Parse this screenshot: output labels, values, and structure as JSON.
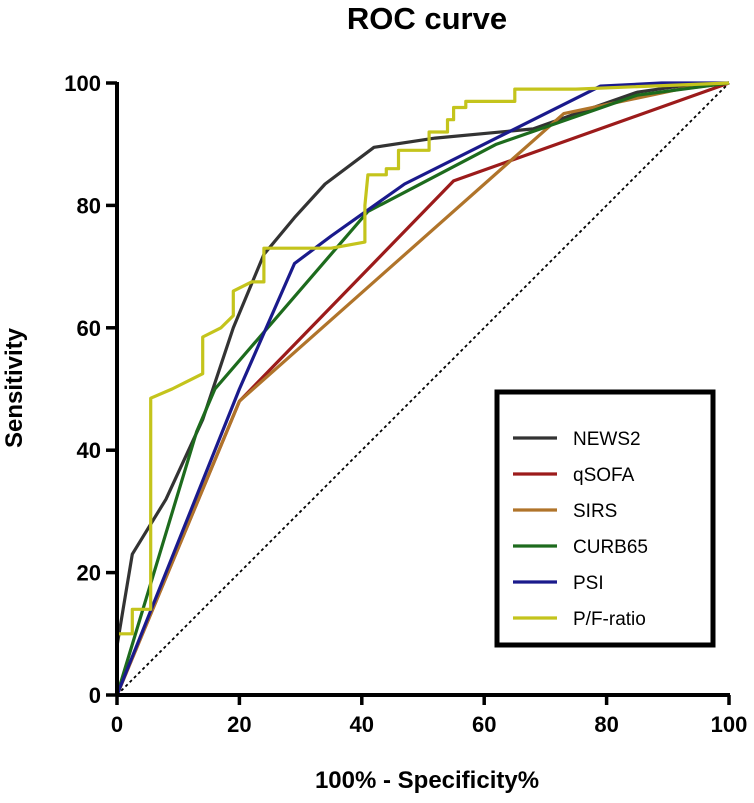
{
  "chart_data": {
    "type": "line",
    "title": "ROC curve",
    "xlabel": "100% - Specificity%",
    "ylabel": "Sensitivity",
    "xlim": [
      0,
      100
    ],
    "ylim": [
      0,
      100
    ],
    "xticks": [
      0,
      20,
      40,
      60,
      80,
      100
    ],
    "yticks": [
      0,
      20,
      40,
      60,
      80,
      100
    ],
    "grid": false,
    "legend_position": "bottom-right",
    "reference_line": {
      "style": "dotted",
      "color": "#000000",
      "points": [
        [
          0,
          0
        ],
        [
          100,
          100
        ]
      ]
    },
    "series": [
      {
        "name": "NEWS2",
        "color": "#333333",
        "points": [
          [
            0,
            0
          ],
          [
            0,
            8
          ],
          [
            1,
            14
          ],
          [
            2.5,
            23
          ],
          [
            8,
            32
          ],
          [
            14,
            45
          ],
          [
            19,
            60
          ],
          [
            24,
            72
          ],
          [
            29,
            78
          ],
          [
            34,
            83.5
          ],
          [
            42,
            89.5
          ],
          [
            52,
            91
          ],
          [
            68,
            92.5
          ],
          [
            75,
            95
          ],
          [
            85,
            98.5
          ],
          [
            92,
            99.5
          ],
          [
            100,
            100
          ]
        ]
      },
      {
        "name": "qSOFA",
        "color": "#9c1b1b",
        "points": [
          [
            0,
            0
          ],
          [
            20,
            48
          ],
          [
            55,
            84
          ],
          [
            100,
            100
          ]
        ]
      },
      {
        "name": "SIRS",
        "color": "#b0742a",
        "points": [
          [
            0,
            0
          ],
          [
            20,
            48
          ],
          [
            73,
            95
          ],
          [
            92,
            99
          ],
          [
            100,
            100
          ]
        ]
      },
      {
        "name": "CURB65",
        "color": "#1d6b1d",
        "points": [
          [
            0,
            0
          ],
          [
            13,
            43
          ],
          [
            16,
            50
          ],
          [
            41,
            79
          ],
          [
            62,
            90
          ],
          [
            85,
            98
          ],
          [
            100,
            100
          ]
        ]
      },
      {
        "name": "PSI",
        "color": "#1a1a8c",
        "points": [
          [
            0,
            0
          ],
          [
            20,
            50
          ],
          [
            29,
            70.5
          ],
          [
            35,
            75
          ],
          [
            47,
            83.5
          ],
          [
            62,
            91
          ],
          [
            79,
            99.5
          ],
          [
            89,
            100
          ],
          [
            100,
            100
          ]
        ]
      },
      {
        "name": "P/F-ratio",
        "color": "#c4c41c",
        "points": [
          [
            0,
            0
          ],
          [
            0,
            10
          ],
          [
            2.5,
            10
          ],
          [
            2.5,
            14
          ],
          [
            5.5,
            14
          ],
          [
            5.5,
            48.5
          ],
          [
            9,
            50
          ],
          [
            14,
            52.5
          ],
          [
            14,
            58.5
          ],
          [
            17,
            60
          ],
          [
            19,
            62
          ],
          [
            19,
            66
          ],
          [
            22,
            67.5
          ],
          [
            24,
            67.5
          ],
          [
            24,
            73
          ],
          [
            29,
            73
          ],
          [
            35,
            73
          ],
          [
            40.5,
            74
          ],
          [
            40.5,
            80
          ],
          [
            41,
            85
          ],
          [
            44,
            85
          ],
          [
            44,
            86
          ],
          [
            46,
            86
          ],
          [
            46,
            89
          ],
          [
            51,
            89
          ],
          [
            51,
            92
          ],
          [
            54,
            92
          ],
          [
            54,
            94
          ],
          [
            55,
            94
          ],
          [
            55,
            96
          ],
          [
            57,
            96
          ],
          [
            57,
            97
          ],
          [
            60,
            97
          ],
          [
            65,
            97
          ],
          [
            65,
            99
          ],
          [
            75,
            99
          ],
          [
            100,
            100
          ]
        ]
      }
    ]
  }
}
